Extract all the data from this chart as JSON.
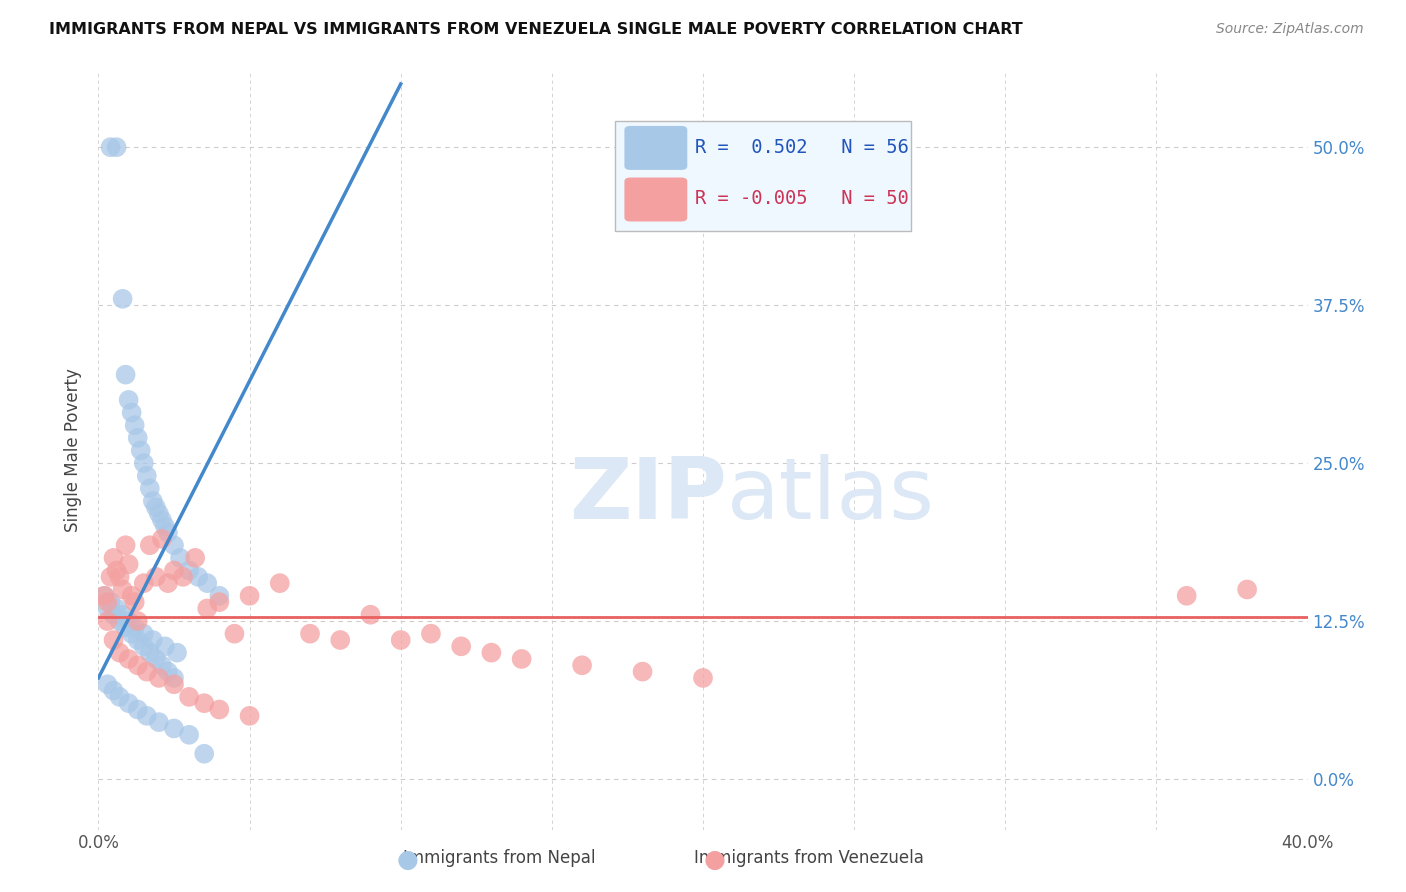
{
  "title": "IMMIGRANTS FROM NEPAL VS IMMIGRANTS FROM VENEZUELA SINGLE MALE POVERTY CORRELATION CHART",
  "source": "Source: ZipAtlas.com",
  "ylabel": "Single Male Poverty",
  "ytick_labels": [
    "0.0%",
    "12.5%",
    "25.0%",
    "37.5%",
    "50.0%"
  ],
  "ytick_values": [
    0.0,
    0.125,
    0.25,
    0.375,
    0.5
  ],
  "xlim": [
    0.0,
    0.4
  ],
  "ylim": [
    -0.04,
    0.56
  ],
  "nepal_R": 0.502,
  "nepal_N": 56,
  "venezuela_R": -0.005,
  "venezuela_N": 50,
  "nepal_color": "#a8c8e8",
  "venezuela_color": "#f4a0a0",
  "nepal_line_color": "#4488cc",
  "venezuela_line_color": "#e86060",
  "background_color": "#ffffff",
  "grid_color": "#cccccc",
  "watermark_color": "#dce8f5",
  "nepal_scatter_x": [
    0.004,
    0.006,
    0.008,
    0.009,
    0.01,
    0.011,
    0.012,
    0.013,
    0.014,
    0.015,
    0.016,
    0.017,
    0.018,
    0.019,
    0.02,
    0.021,
    0.022,
    0.023,
    0.025,
    0.027,
    0.03,
    0.033,
    0.036,
    0.04,
    0.003,
    0.005,
    0.007,
    0.009,
    0.011,
    0.013,
    0.015,
    0.017,
    0.019,
    0.021,
    0.023,
    0.025,
    0.002,
    0.004,
    0.006,
    0.008,
    0.01,
    0.012,
    0.015,
    0.018,
    0.022,
    0.026,
    0.003,
    0.005,
    0.007,
    0.01,
    0.013,
    0.016,
    0.02,
    0.025,
    0.03,
    0.035
  ],
  "nepal_scatter_y": [
    0.5,
    0.5,
    0.38,
    0.32,
    0.3,
    0.29,
    0.28,
    0.27,
    0.26,
    0.25,
    0.24,
    0.23,
    0.22,
    0.215,
    0.21,
    0.205,
    0.2,
    0.195,
    0.185,
    0.175,
    0.165,
    0.16,
    0.155,
    0.145,
    0.135,
    0.13,
    0.125,
    0.12,
    0.115,
    0.11,
    0.105,
    0.1,
    0.095,
    0.09,
    0.085,
    0.08,
    0.145,
    0.14,
    0.135,
    0.13,
    0.125,
    0.12,
    0.115,
    0.11,
    0.105,
    0.1,
    0.075,
    0.07,
    0.065,
    0.06,
    0.055,
    0.05,
    0.045,
    0.04,
    0.035,
    0.02
  ],
  "venezuela_scatter_x": [
    0.002,
    0.003,
    0.004,
    0.005,
    0.006,
    0.007,
    0.008,
    0.009,
    0.01,
    0.011,
    0.012,
    0.013,
    0.015,
    0.017,
    0.019,
    0.021,
    0.023,
    0.025,
    0.028,
    0.032,
    0.036,
    0.04,
    0.045,
    0.05,
    0.06,
    0.07,
    0.08,
    0.09,
    0.1,
    0.11,
    0.12,
    0.13,
    0.14,
    0.16,
    0.18,
    0.2,
    0.003,
    0.005,
    0.007,
    0.01,
    0.013,
    0.016,
    0.02,
    0.025,
    0.03,
    0.035,
    0.04,
    0.05,
    0.36,
    0.38
  ],
  "venezuela_scatter_y": [
    0.145,
    0.14,
    0.16,
    0.175,
    0.165,
    0.16,
    0.15,
    0.185,
    0.17,
    0.145,
    0.14,
    0.125,
    0.155,
    0.185,
    0.16,
    0.19,
    0.155,
    0.165,
    0.16,
    0.175,
    0.135,
    0.14,
    0.115,
    0.145,
    0.155,
    0.115,
    0.11,
    0.13,
    0.11,
    0.115,
    0.105,
    0.1,
    0.095,
    0.09,
    0.085,
    0.08,
    0.125,
    0.11,
    0.1,
    0.095,
    0.09,
    0.085,
    0.08,
    0.075,
    0.065,
    0.06,
    0.055,
    0.05,
    0.145,
    0.15
  ],
  "nepal_line_x0": 0.0,
  "nepal_line_y0": 0.08,
  "nepal_line_x1": 0.1,
  "nepal_line_y1": 0.55,
  "venezuela_line_y": 0.128
}
